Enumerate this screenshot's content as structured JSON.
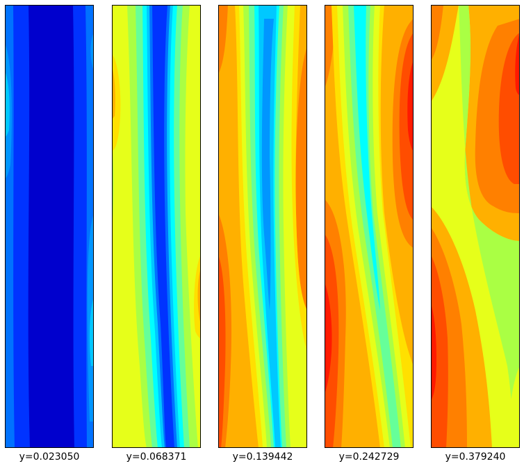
{
  "colors": {
    "c0": "#0000cd",
    "c1": "#0033ff",
    "c2": "#0072ff",
    "c3": "#00c8ff",
    "c4": "#00ffff",
    "c5": "#66ff99",
    "c6": "#aaff44",
    "c7": "#e6ff1a",
    "c8": "#ffe000",
    "c9": "#ffb000",
    "c10": "#ff8000",
    "c11": "#ff4d00",
    "c12": "#ff1a00"
  },
  "panels": [
    {
      "label": "y=0.023050"
    },
    {
      "label": "y=0.068371"
    },
    {
      "label": "y=0.139442"
    },
    {
      "label": "y=0.242729"
    },
    {
      "label": "y=0.379240"
    }
  ]
}
